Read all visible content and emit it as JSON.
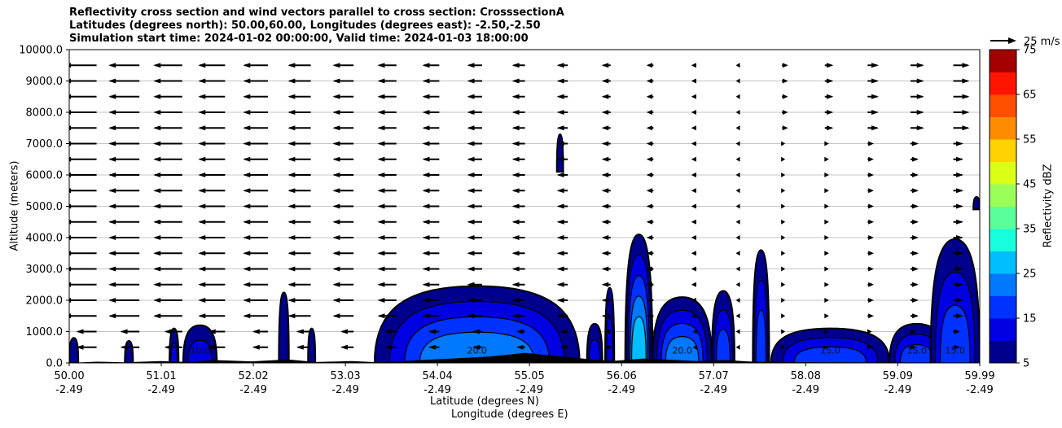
{
  "title_lines": [
    "Reflectivity cross section and wind vectors parallel to cross section: CrosssectionA",
    "Latitudes (degrees north): 50.00,60.00, Longitudes (degrees east): -2.50,-2.50",
    "Simulation start time: 2024-01-02 00:00:00, Valid time: 2024-01-03 18:00:00"
  ],
  "chart_data": {
    "type": "heatmap",
    "ylabel": "Altitude (meters)",
    "xlabel_lines": [
      "Latitude (degrees N)",
      "Longitude (degrees E)"
    ],
    "ylim": [
      0,
      10000
    ],
    "y_ticks": [
      "0.0",
      "1000.0",
      "2000.0",
      "3000.0",
      "4000.0",
      "5000.0",
      "6000.0",
      "7000.0",
      "8000.0",
      "9000.0",
      "10000.0"
    ],
    "y_tick_values": [
      0,
      1000,
      2000,
      3000,
      4000,
      5000,
      6000,
      7000,
      8000,
      9000,
      10000
    ],
    "x_tick_lat": [
      "50.00",
      "51.01",
      "52.02",
      "53.03",
      "54.04",
      "55.05",
      "56.06",
      "57.07",
      "58.08",
      "59.09",
      "59.99"
    ],
    "x_tick_lon": [
      "-2.49",
      "-2.49",
      "-2.49",
      "-2.49",
      "-2.49",
      "-2.49",
      "-2.49",
      "-2.49",
      "-2.49",
      "-2.49",
      "-2.49"
    ],
    "x_tick_values": [
      50.0,
      51.01,
      52.02,
      53.03,
      54.04,
      55.05,
      56.06,
      57.07,
      58.08,
      59.09,
      59.99
    ],
    "grid": "horizontal",
    "colorbar": {
      "label": "Reflectivity dBZ",
      "ticks": [
        "5",
        "15",
        "25",
        "35",
        "45",
        "55",
        "65",
        "75"
      ],
      "levels": [
        5,
        10,
        15,
        20,
        25,
        30,
        35,
        40,
        45,
        50,
        55,
        60,
        65,
        70,
        75
      ],
      "colors": [
        "#00008c",
        "#0000e0",
        "#0032ff",
        "#0078ff",
        "#00beff",
        "#17ffdc",
        "#5aff9b",
        "#9bff5a",
        "#dcff17",
        "#ffd200",
        "#ff8c00",
        "#ff5000",
        "#ff1400",
        "#a50000"
      ]
    },
    "quiver_key": {
      "label": "25 m/s",
      "speed": 25
    },
    "wind_vector_levels": [
      500,
      1000,
      1500,
      2000,
      2500,
      3000,
      3500,
      4000,
      4500,
      5000,
      5500,
      6000,
      6500,
      7000,
      7500,
      8000,
      8500,
      9000,
      9500
    ],
    "wind_vector_latitudes": [
      50.3,
      50.77,
      51.24,
      51.71,
      52.18,
      52.65,
      53.12,
      53.59,
      54.06,
      54.53,
      55.0,
      55.47,
      55.94,
      56.41,
      56.88,
      57.35,
      57.82,
      58.29,
      58.76,
      59.23,
      59.7
    ],
    "contour_labels": [
      "5.0",
      "10.0",
      "15.0",
      "20.0",
      "25.0"
    ],
    "echo_cells": [
      {
        "lat": [
          50.0,
          50.1
        ],
        "top": 800,
        "max": 10
      },
      {
        "lat": [
          50.61,
          50.7
        ],
        "top": 700,
        "max": 10
      },
      {
        "lat": [
          51.1,
          51.2
        ],
        "top": 1100,
        "max": 15
      },
      {
        "lat": [
          51.25,
          51.62
        ],
        "top": 1200,
        "max": 15
      },
      {
        "lat": [
          52.3,
          52.41
        ],
        "top": 2250,
        "max": 10
      },
      {
        "lat": [
          52.62,
          52.7
        ],
        "top": 1100,
        "max": 10
      },
      {
        "lat": [
          53.35,
          55.6
        ],
        "top": 2450,
        "max": 25
      },
      {
        "lat": [
          55.35,
          55.42
        ],
        "top": 7300,
        "base": 6100,
        "max": 10
      },
      {
        "lat": [
          55.68,
          55.85
        ],
        "top": 1250,
        "max": 15
      },
      {
        "lat": [
          55.88,
          55.98
        ],
        "top": 2400,
        "max": 15
      },
      {
        "lat": [
          56.1,
          56.4
        ],
        "top": 4100,
        "max": 30
      },
      {
        "lat": [
          56.4,
          57.05
        ],
        "top": 2100,
        "max": 25
      },
      {
        "lat": [
          57.05,
          57.3
        ],
        "top": 2300,
        "max": 20
      },
      {
        "lat": [
          57.5,
          57.68
        ],
        "top": 3600,
        "max": 20
      },
      {
        "lat": [
          57.7,
          59.0
        ],
        "top": 1100,
        "max": 20
      },
      {
        "lat": [
          59.0,
          59.6
        ],
        "top": 1250,
        "max": 20
      },
      {
        "lat": [
          59.45,
          59.99
        ],
        "top": 3950,
        "max": 20
      },
      {
        "lat": [
          59.92,
          59.99
        ],
        "top": 5300,
        "base": 4900,
        "max": 10
      }
    ]
  }
}
